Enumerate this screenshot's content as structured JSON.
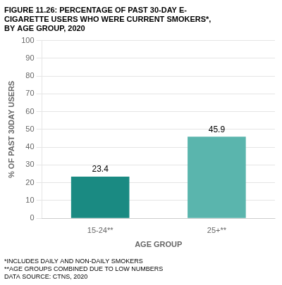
{
  "chart_data": {
    "type": "bar",
    "title": "FIGURE 11.26: PERCENTAGE OF PAST 30-DAY E-\nCIGARETTE USERS WHO WERE CURRENT SMOKERS*,\nBY AGE GROUP, 2020",
    "categories": [
      "15-24**",
      "25+**"
    ],
    "values": [
      23.4,
      45.9
    ],
    "colors": [
      "#1a8a82",
      "#5ab5ad"
    ],
    "xlabel": "AGE GROUP",
    "ylabel": "% OF PAST 30DAY USERS",
    "ylim": [
      0,
      100
    ],
    "yticks": [
      0,
      10,
      20,
      30,
      40,
      50,
      60,
      70,
      80,
      90,
      100
    ],
    "grid": true,
    "data_labels": true,
    "annotations": [
      "*INCLUDES DAILY AND NON-DAILY SMOKERS",
      "**AGE GROUPS COMBINED DUE TO LOW NUMBERS",
      "DATA SOURCE: CTNS, 2020"
    ]
  }
}
